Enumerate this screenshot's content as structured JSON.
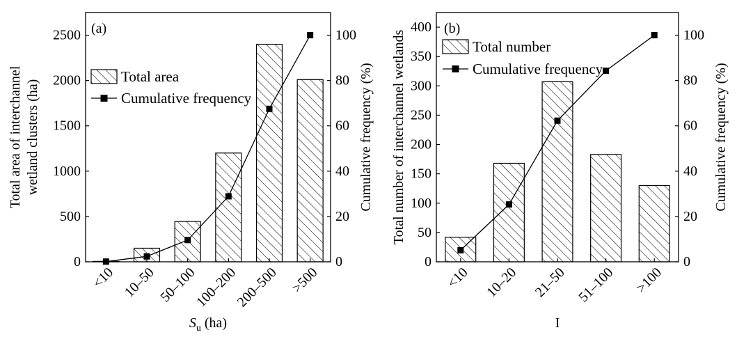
{
  "figure": {
    "colors": {
      "axis": "#000000",
      "bar_edge": "#000000",
      "hatch": "#000000",
      "line": "#000000",
      "marker": "#000000"
    }
  },
  "chart_data": [
    {
      "panel_label": "(a)",
      "type": "bar",
      "categories": [
        "<10",
        "10–50",
        "50–100",
        "100–200",
        "200–500",
        ">500"
      ],
      "xlabel_symbol": "S",
      "xlabel_subscript": "u",
      "xlabel_unit": "(ha)",
      "ylabel_lines": [
        "Total area of interchannel",
        "wetland clusters (ha)"
      ],
      "y2label": "Cumulative frequency (%)",
      "ylim": [
        0,
        2750
      ],
      "y2lim": [
        0,
        110
      ],
      "yticks": [
        0,
        500,
        1000,
        1500,
        2000,
        2500
      ],
      "y2ticks": [
        0,
        20,
        40,
        60,
        80,
        100
      ],
      "grid": false,
      "legend": "upper-left",
      "series": [
        {
          "name": "Total area",
          "type": "bar",
          "axis": "left",
          "values": [
            5,
            150,
            445,
            1200,
            2400,
            2010
          ]
        },
        {
          "name": "Cumulative frequency",
          "type": "line",
          "axis": "right",
          "values": [
            0.1,
            2.4,
            9.6,
            28.9,
            67.5,
            100
          ]
        }
      ]
    },
    {
      "panel_label": "(b)",
      "type": "bar",
      "categories": [
        "<10",
        "10–20",
        "21–50",
        "51–100",
        ">100"
      ],
      "xlabel": "I",
      "ylabel_lines": [
        "Total number of interchannel wetlands"
      ],
      "y2label": "Cumulative frequency (%)",
      "ylim": [
        0,
        425
      ],
      "y2lim": [
        0,
        110
      ],
      "yticks": [
        0,
        50,
        100,
        150,
        200,
        250,
        300,
        350,
        400
      ],
      "y2ticks": [
        0,
        20,
        40,
        60,
        80,
        100
      ],
      "grid": false,
      "legend": "top-left",
      "series": [
        {
          "name": "Total number",
          "type": "bar",
          "axis": "left",
          "values": [
            42,
            168,
            307,
            183,
            130
          ]
        },
        {
          "name": "Cumulative frequency",
          "type": "line",
          "axis": "right",
          "values": [
            5.1,
            25.3,
            62.3,
            84.3,
            100
          ]
        }
      ]
    }
  ]
}
